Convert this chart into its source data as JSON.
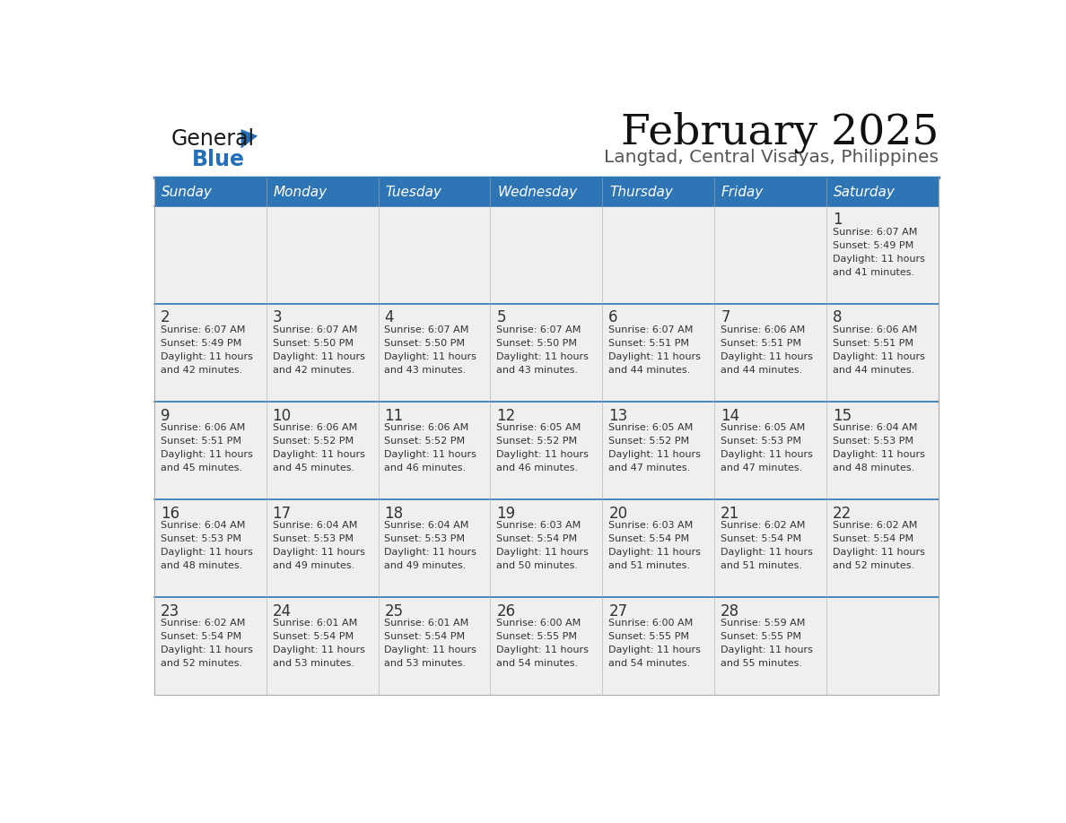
{
  "title": "February 2025",
  "subtitle": "Langtad, Central Visayas, Philippines",
  "header_bg": "#2E75B6",
  "header_text_color": "#FFFFFF",
  "cell_bg_light": "#EFEFEF",
  "separator_color": "#2E75B6",
  "text_color": "#333333",
  "days_of_week": [
    "Sunday",
    "Monday",
    "Tuesday",
    "Wednesday",
    "Thursday",
    "Friday",
    "Saturday"
  ],
  "weeks": [
    [
      {
        "day": null,
        "sunrise": null,
        "sunset": null,
        "daylight": null
      },
      {
        "day": null,
        "sunrise": null,
        "sunset": null,
        "daylight": null
      },
      {
        "day": null,
        "sunrise": null,
        "sunset": null,
        "daylight": null
      },
      {
        "day": null,
        "sunrise": null,
        "sunset": null,
        "daylight": null
      },
      {
        "day": null,
        "sunrise": null,
        "sunset": null,
        "daylight": null
      },
      {
        "day": null,
        "sunrise": null,
        "sunset": null,
        "daylight": null
      },
      {
        "day": 1,
        "sunrise": "6:07 AM",
        "sunset": "5:49 PM",
        "daylight": "11 hours and 41 minutes."
      }
    ],
    [
      {
        "day": 2,
        "sunrise": "6:07 AM",
        "sunset": "5:49 PM",
        "daylight": "11 hours and 42 minutes."
      },
      {
        "day": 3,
        "sunrise": "6:07 AM",
        "sunset": "5:50 PM",
        "daylight": "11 hours and 42 minutes."
      },
      {
        "day": 4,
        "sunrise": "6:07 AM",
        "sunset": "5:50 PM",
        "daylight": "11 hours and 43 minutes."
      },
      {
        "day": 5,
        "sunrise": "6:07 AM",
        "sunset": "5:50 PM",
        "daylight": "11 hours and 43 minutes."
      },
      {
        "day": 6,
        "sunrise": "6:07 AM",
        "sunset": "5:51 PM",
        "daylight": "11 hours and 44 minutes."
      },
      {
        "day": 7,
        "sunrise": "6:06 AM",
        "sunset": "5:51 PM",
        "daylight": "11 hours and 44 minutes."
      },
      {
        "day": 8,
        "sunrise": "6:06 AM",
        "sunset": "5:51 PM",
        "daylight": "11 hours and 44 minutes."
      }
    ],
    [
      {
        "day": 9,
        "sunrise": "6:06 AM",
        "sunset": "5:51 PM",
        "daylight": "11 hours and 45 minutes."
      },
      {
        "day": 10,
        "sunrise": "6:06 AM",
        "sunset": "5:52 PM",
        "daylight": "11 hours and 45 minutes."
      },
      {
        "day": 11,
        "sunrise": "6:06 AM",
        "sunset": "5:52 PM",
        "daylight": "11 hours and 46 minutes."
      },
      {
        "day": 12,
        "sunrise": "6:05 AM",
        "sunset": "5:52 PM",
        "daylight": "11 hours and 46 minutes."
      },
      {
        "day": 13,
        "sunrise": "6:05 AM",
        "sunset": "5:52 PM",
        "daylight": "11 hours and 47 minutes."
      },
      {
        "day": 14,
        "sunrise": "6:05 AM",
        "sunset": "5:53 PM",
        "daylight": "11 hours and 47 minutes."
      },
      {
        "day": 15,
        "sunrise": "6:04 AM",
        "sunset": "5:53 PM",
        "daylight": "11 hours and 48 minutes."
      }
    ],
    [
      {
        "day": 16,
        "sunrise": "6:04 AM",
        "sunset": "5:53 PM",
        "daylight": "11 hours and 48 minutes."
      },
      {
        "day": 17,
        "sunrise": "6:04 AM",
        "sunset": "5:53 PM",
        "daylight": "11 hours and 49 minutes."
      },
      {
        "day": 18,
        "sunrise": "6:04 AM",
        "sunset": "5:53 PM",
        "daylight": "11 hours and 49 minutes."
      },
      {
        "day": 19,
        "sunrise": "6:03 AM",
        "sunset": "5:54 PM",
        "daylight": "11 hours and 50 minutes."
      },
      {
        "day": 20,
        "sunrise": "6:03 AM",
        "sunset": "5:54 PM",
        "daylight": "11 hours and 51 minutes."
      },
      {
        "day": 21,
        "sunrise": "6:02 AM",
        "sunset": "5:54 PM",
        "daylight": "11 hours and 51 minutes."
      },
      {
        "day": 22,
        "sunrise": "6:02 AM",
        "sunset": "5:54 PM",
        "daylight": "11 hours and 52 minutes."
      }
    ],
    [
      {
        "day": 23,
        "sunrise": "6:02 AM",
        "sunset": "5:54 PM",
        "daylight": "11 hours and 52 minutes."
      },
      {
        "day": 24,
        "sunrise": "6:01 AM",
        "sunset": "5:54 PM",
        "daylight": "11 hours and 53 minutes."
      },
      {
        "day": 25,
        "sunrise": "6:01 AM",
        "sunset": "5:54 PM",
        "daylight": "11 hours and 53 minutes."
      },
      {
        "day": 26,
        "sunrise": "6:00 AM",
        "sunset": "5:55 PM",
        "daylight": "11 hours and 54 minutes."
      },
      {
        "day": 27,
        "sunrise": "6:00 AM",
        "sunset": "5:55 PM",
        "daylight": "11 hours and 54 minutes."
      },
      {
        "day": 28,
        "sunrise": "5:59 AM",
        "sunset": "5:55 PM",
        "daylight": "11 hours and 55 minutes."
      },
      {
        "day": null,
        "sunrise": null,
        "sunset": null,
        "daylight": null
      }
    ]
  ],
  "logo_color_general": "#1a1a1a",
  "logo_color_blue": "#2570B8",
  "logo_triangle_color": "#2570B8"
}
